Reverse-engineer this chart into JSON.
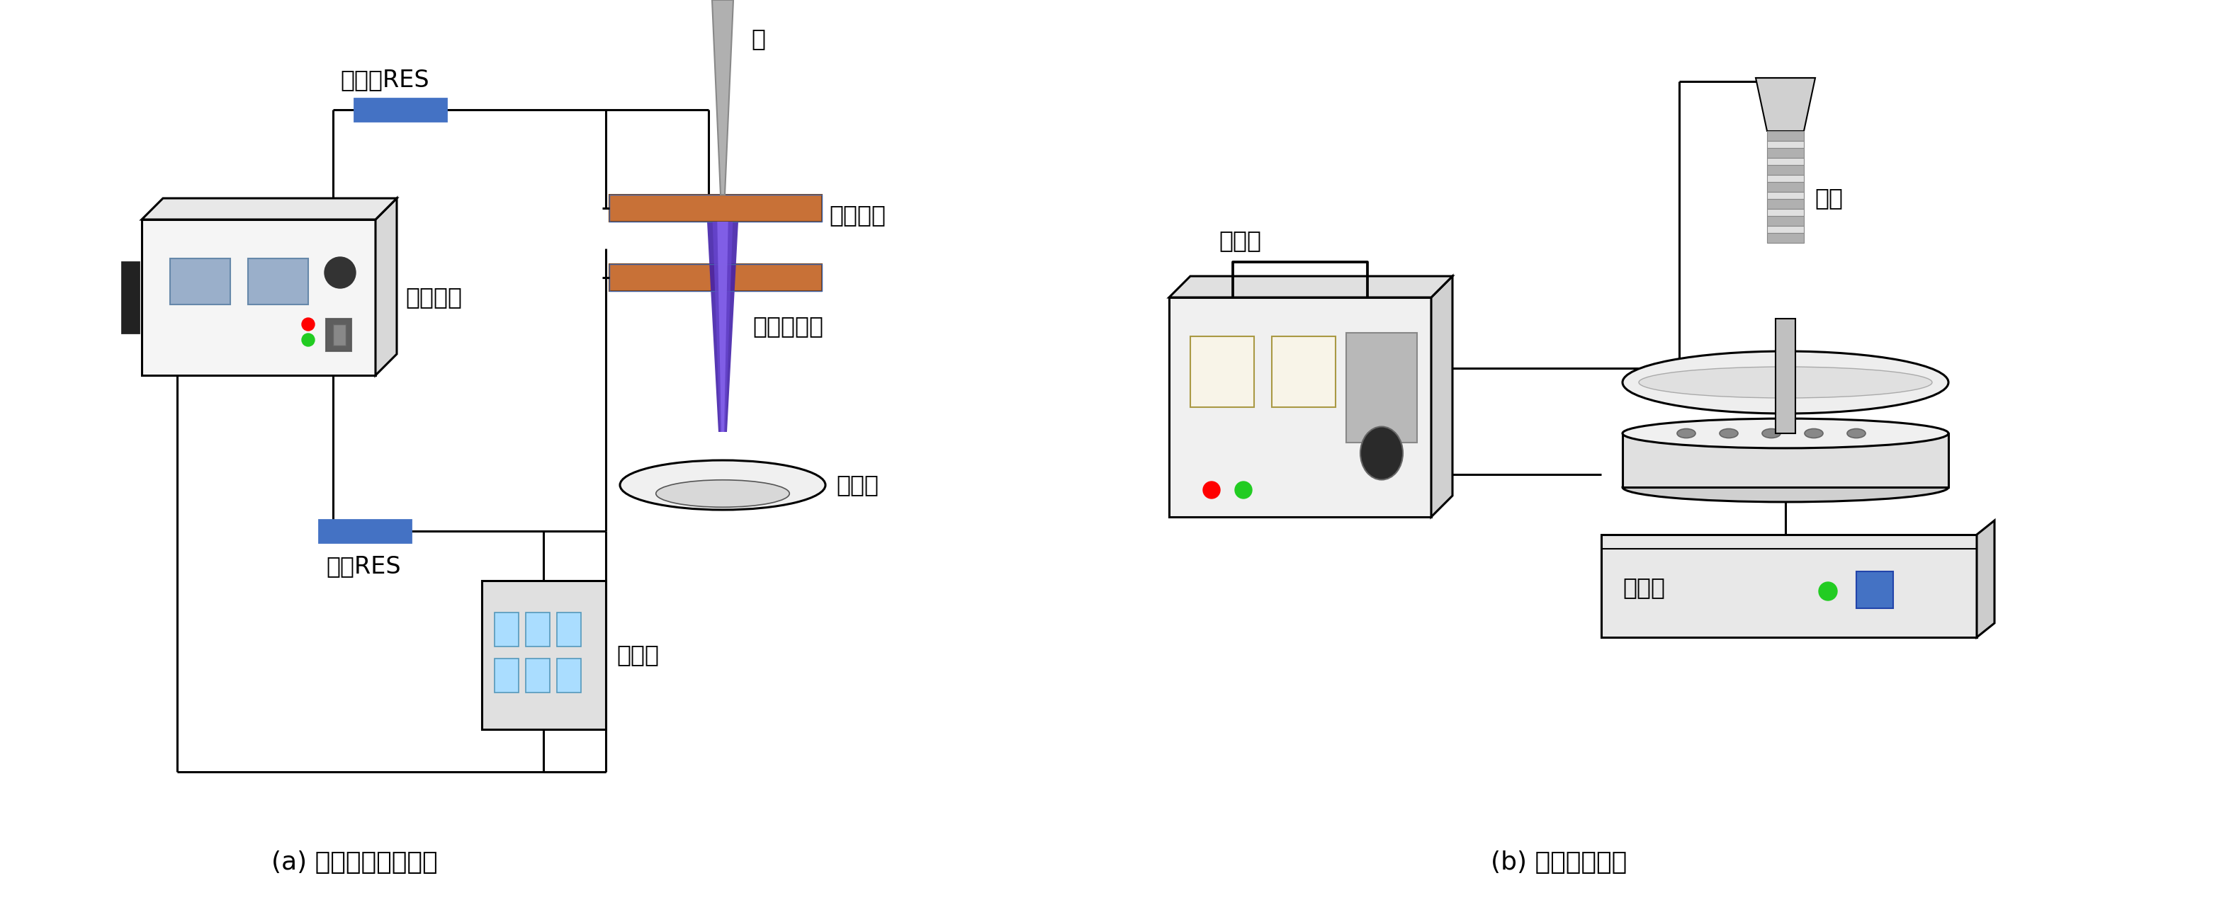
{
  "fig_width": 31.46,
  "fig_height": 12.71,
  "bg_color": "#ffffff",
  "caption_a": "(a) 辉光放电等离子体",
  "caption_b": "(b) 光化学反应仪",
  "label_zhenliu": "镇流器RES",
  "label_jianyan": "检验RES",
  "label_wendian": "稳电压源",
  "label_wanyong": "万用表",
  "label_yinjixun": "阴极循环",
  "label_denglizi": "等离子射流",
  "label_fanyingqi_a": "反应器",
  "label_zhen": "针",
  "label_kongzhiqi": "控制器",
  "label_xideng": "氙灯",
  "label_fanyingqi_b": "反应器",
  "line_color": "#000000",
  "res_color": "#4472c4",
  "cathode_color": "#c87137",
  "plasma_color_dark": "#5a3a9a",
  "plasma_color_mid": "#7755cc",
  "plasma_color_light": "#8888dd",
  "needle_color": "#aaaaaa"
}
